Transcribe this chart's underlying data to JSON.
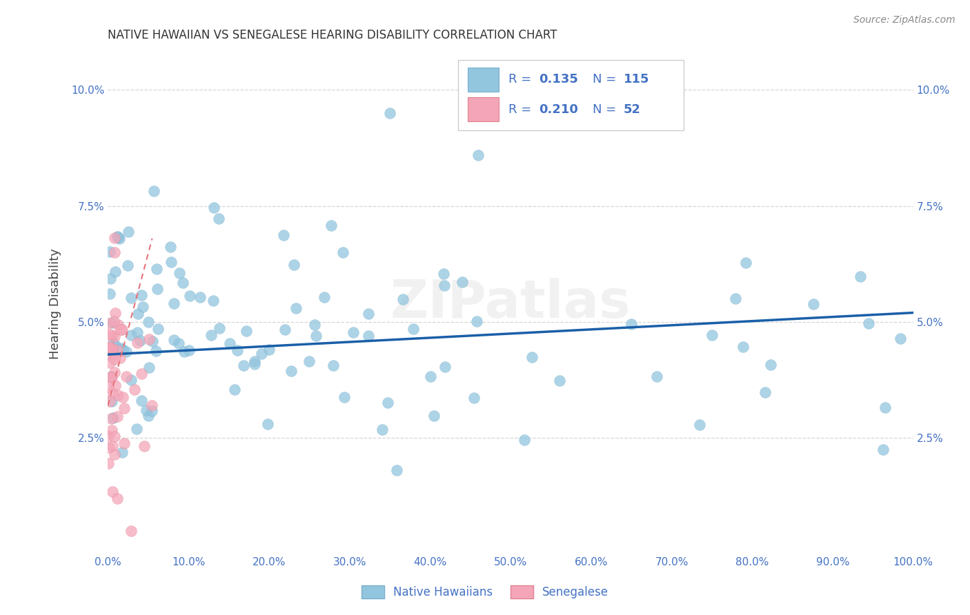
{
  "title": "NATIVE HAWAIIAN VS SENEGALESE HEARING DISABILITY CORRELATION CHART",
  "source": "Source: ZipAtlas.com",
  "ylabel": "Hearing Disability",
  "xlim": [
    0.0,
    1.0
  ],
  "ylim": [
    0.0,
    0.108
  ],
  "xticks": [
    0.0,
    0.1,
    0.2,
    0.3,
    0.4,
    0.5,
    0.6,
    0.7,
    0.8,
    0.9,
    1.0
  ],
  "xticklabels": [
    "0.0%",
    "10.0%",
    "20.0%",
    "30.0%",
    "40.0%",
    "50.0%",
    "60.0%",
    "70.0%",
    "80.0%",
    "90.0%",
    "100.0%"
  ],
  "yticks": [
    0.025,
    0.05,
    0.075,
    0.1
  ],
  "yticklabels": [
    "2.5%",
    "5.0%",
    "7.5%",
    "10.0%"
  ],
  "native_hawaiian_R": 0.135,
  "native_hawaiian_N": 115,
  "senegalese_R": 0.21,
  "senegalese_N": 52,
  "blue_color": "#92c5de",
  "pink_color": "#f4a6b8",
  "blue_line_color": "#1a5fa8",
  "pink_line_color": "#e8737a",
  "grid_color": "#cccccc",
  "title_color": "#333333",
  "tick_color": "#4472c4",
  "watermark": "ZIPatlas",
  "legend_color": "#4472c4",
  "nh_line_y0": 0.043,
  "nh_line_y1": 0.052,
  "sn_line_x0": 0.0,
  "sn_line_x1": 0.055,
  "sn_line_y0": 0.032,
  "sn_line_y1": 0.068
}
